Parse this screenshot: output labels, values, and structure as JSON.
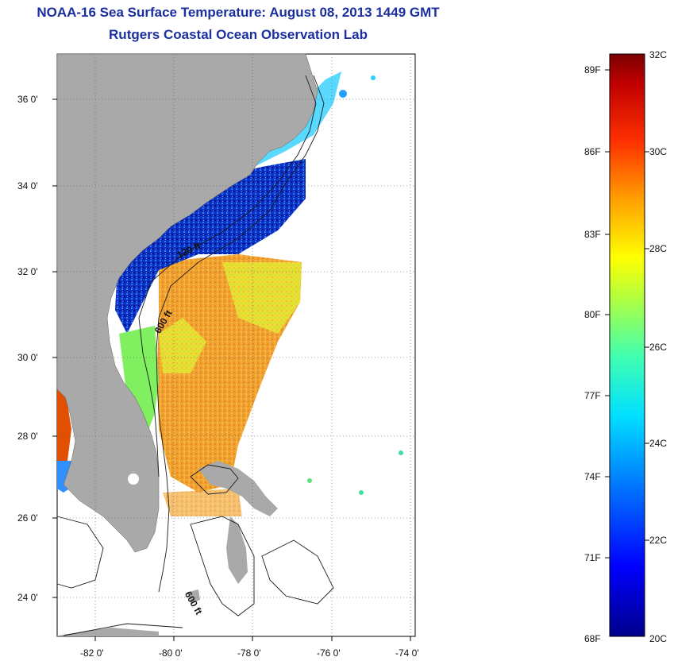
{
  "header": {
    "title": "NOAA-16 Sea Surface Temperature:  August 08, 2013 1449 GMT",
    "subtitle": "Rutgers Coastal Ocean Observation Lab"
  },
  "map": {
    "lat_labels": [
      "36 0'",
      "34 0'",
      "32 0'",
      "30 0'",
      "28 0'",
      "26 0'",
      "24 0'"
    ],
    "lon_labels": [
      "-82 0'",
      "-80 0'",
      "-78 0'",
      "-76 0'",
      "-74 0'"
    ],
    "contour_labels": [
      "120 ft",
      "600 ft",
      "600 ft"
    ],
    "land_color": "#a9a9a9"
  },
  "colorbar": {
    "fahrenheit": [
      "89F",
      "86F",
      "83F",
      "80F",
      "77F",
      "74F",
      "71F",
      "68F"
    ],
    "celsius": [
      "32C",
      "30C",
      "28C",
      "26C",
      "24C",
      "22C",
      "20C"
    ]
  }
}
